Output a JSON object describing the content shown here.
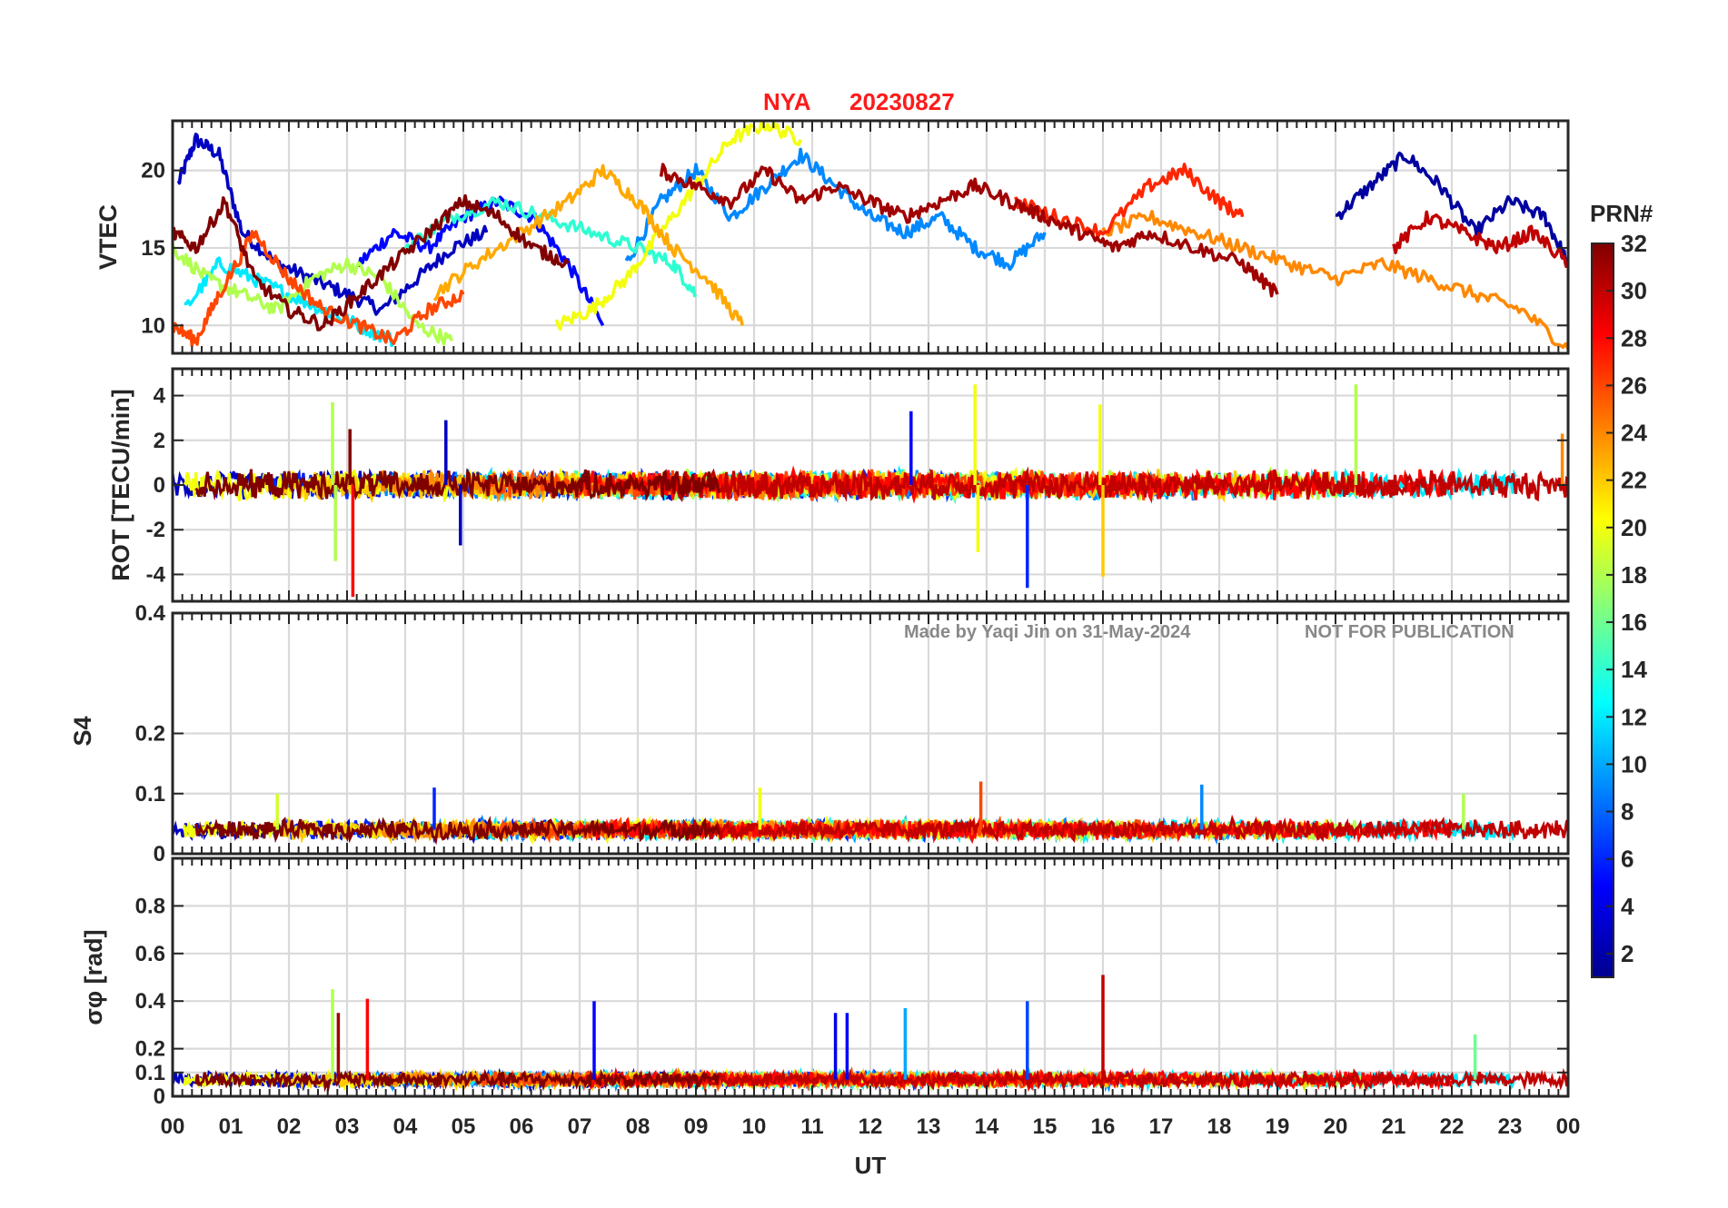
{
  "title": {
    "station": "NYA",
    "date": "20230827",
    "color": "#ff1a1a"
  },
  "watermark": {
    "credit": "Made by Yaqi Jin on 31-May-2024",
    "notice": "NOT FOR PUBLICATION"
  },
  "xlabel": "UT",
  "x_ticks": [
    "00",
    "01",
    "02",
    "03",
    "04",
    "05",
    "06",
    "07",
    "08",
    "09",
    "10",
    "11",
    "12",
    "13",
    "14",
    "15",
    "16",
    "17",
    "18",
    "19",
    "20",
    "21",
    "22",
    "23",
    "00"
  ],
  "colorbar": {
    "label": "PRN#",
    "range": [
      1,
      32
    ],
    "colormap": "jet",
    "ticks": [
      "2",
      "4",
      "6",
      "8",
      "10",
      "12",
      "14",
      "16",
      "18",
      "20",
      "22",
      "24",
      "26",
      "28",
      "30",
      "32"
    ]
  },
  "chart_data": [
    {
      "type": "line",
      "panel": "vtec",
      "ylabel": "VTEC",
      "xlim": [
        0,
        24
      ],
      "ylim": [
        8.2,
        23.2
      ],
      "yticks": [
        "10",
        "15",
        "20"
      ],
      "grid": true,
      "series": [
        {
          "prn": 3,
          "x": [
            0.1,
            0.4,
            0.8,
            1.2,
            1.8,
            2.4,
            3.0,
            3.6,
            4.2,
            4.8,
            5.4
          ],
          "y": [
            19.2,
            22,
            21,
            16,
            14,
            13,
            12,
            11,
            13,
            15,
            16
          ]
        },
        {
          "prn": 5,
          "x": [
            3.2,
            3.8,
            4.4,
            5.0,
            5.6,
            6.2,
            6.8,
            7.4
          ],
          "y": [
            14,
            16,
            15,
            17,
            18,
            17,
            14,
            10
          ]
        },
        {
          "prn": 9,
          "x": [
            7.8,
            8.4,
            9.0,
            9.6,
            10.2,
            10.8,
            11.4,
            12.0,
            12.6,
            13.2,
            13.8,
            14.4,
            15.0
          ],
          "y": [
            14,
            18,
            20,
            17,
            19,
            21,
            19,
            17,
            16,
            17,
            15,
            14,
            16
          ]
        },
        {
          "prn": 2,
          "x": [
            20.0,
            20.6,
            21.2,
            21.8,
            22.4,
            23.0,
            23.6,
            24.0
          ],
          "y": [
            17,
            19,
            21,
            19,
            16,
            18,
            17,
            14
          ]
        },
        {
          "prn": 12,
          "x": [
            0.2,
            0.8,
            1.4,
            2.0,
            2.6,
            3.2,
            3.8
          ],
          "y": [
            11,
            14,
            13,
            12,
            11,
            10,
            9
          ]
        },
        {
          "prn": 14,
          "x": [
            4.0,
            4.8,
            5.6,
            6.4,
            7.2,
            8.0,
            8.6,
            9.0
          ],
          "y": [
            15,
            17,
            18,
            17,
            16,
            15,
            14,
            12
          ]
        },
        {
          "prn": 18,
          "x": [
            0.0,
            0.6,
            1.2,
            1.8,
            2.4,
            3.0,
            3.6,
            4.2,
            4.8
          ],
          "y": [
            15,
            13,
            12,
            11,
            13,
            14,
            13,
            10,
            9
          ]
        },
        {
          "prn": 20,
          "x": [
            6.6,
            7.2,
            7.8,
            8.4,
            9.0,
            9.6,
            10.2,
            10.8
          ],
          "y": [
            10,
            11,
            13,
            16,
            19,
            22,
            23,
            22
          ]
        },
        {
          "prn": 23,
          "x": [
            4.5,
            5.2,
            6.0,
            6.8,
            7.4,
            8.0,
            8.6,
            9.2,
            9.8
          ],
          "y": [
            12,
            14,
            16,
            18,
            20,
            18,
            15,
            13,
            10
          ]
        },
        {
          "prn": 24,
          "x": [
            16.0,
            16.8,
            17.6,
            18.4,
            19.2,
            20.0,
            20.8,
            21.6,
            22.4,
            23.2,
            24.0
          ],
          "y": [
            16,
            17,
            16,
            15,
            14,
            13,
            14,
            13,
            12,
            11,
            8.5
          ]
        },
        {
          "prn": 26,
          "x": [
            0.0,
            0.4,
            0.8,
            1.4,
            2.0,
            2.6,
            3.2,
            3.8,
            4.4,
            5.0
          ],
          "y": [
            10,
            9,
            12,
            16,
            13,
            11,
            10,
            9,
            11,
            12
          ]
        },
        {
          "prn": 27,
          "x": [
            14.5,
            15.2,
            16.0,
            16.8,
            17.4,
            18.0,
            18.4
          ],
          "y": [
            18,
            17,
            16,
            19,
            20,
            18,
            17
          ]
        },
        {
          "prn": 31,
          "x": [
            8.4,
            9.0,
            9.6,
            10.2,
            10.8,
            11.4,
            12.0,
            12.6,
            13.2,
            13.8,
            14.4,
            15.0,
            15.6,
            16.2,
            16.8,
            17.6,
            18.4,
            19.0
          ],
          "y": [
            20,
            19,
            18,
            20,
            18,
            19,
            18,
            17,
            18,
            19,
            18,
            17,
            16,
            15,
            16,
            15,
            14,
            12
          ]
        },
        {
          "prn": 32,
          "x": [
            0.0,
            0.4,
            0.9,
            1.4,
            2.0,
            2.6,
            3.2,
            3.8,
            4.4,
            5.0,
            5.6,
            6.2,
            6.8
          ],
          "y": [
            16,
            15,
            18,
            13,
            11,
            10,
            12,
            14,
            16,
            18,
            17,
            15,
            14
          ]
        },
        {
          "prn": 30,
          "x": [
            21.0,
            21.6,
            22.2,
            22.8,
            23.4,
            24.0
          ],
          "y": [
            15,
            17,
            16,
            15,
            16,
            14
          ]
        }
      ]
    },
    {
      "type": "line",
      "panel": "rot",
      "ylabel": "ROT [TECU/min]",
      "xlim": [
        0,
        24
      ],
      "ylim": [
        -5.2,
        5.2
      ],
      "yticks": [
        "-4",
        "-2",
        "0",
        "2",
        "4"
      ],
      "grid": true,
      "noise_amplitude_tecu_per_min": 0.6,
      "spikes": [
        {
          "x": 2.75,
          "y": 3.7,
          "prn": 18
        },
        {
          "x": 2.8,
          "y": -3.4,
          "prn": 18
        },
        {
          "x": 3.05,
          "y": 2.5,
          "prn": 32
        },
        {
          "x": 3.1,
          "y": -5.0,
          "prn": 28
        },
        {
          "x": 4.7,
          "y": 2.9,
          "prn": 3
        },
        {
          "x": 4.95,
          "y": -2.7,
          "prn": 3
        },
        {
          "x": 12.7,
          "y": 3.3,
          "prn": 5
        },
        {
          "x": 13.8,
          "y": 4.5,
          "prn": 20
        },
        {
          "x": 13.85,
          "y": -3.0,
          "prn": 20
        },
        {
          "x": 14.7,
          "y": -4.6,
          "prn": 6
        },
        {
          "x": 15.95,
          "y": 3.6,
          "prn": 20
        },
        {
          "x": 16.0,
          "y": -4.1,
          "prn": 22
        },
        {
          "x": 20.35,
          "y": 4.5,
          "prn": 18
        },
        {
          "x": 23.9,
          "y": 2.3,
          "prn": 24
        }
      ]
    },
    {
      "type": "line",
      "panel": "s4",
      "ylabel": "S4",
      "xlim": [
        0,
        24
      ],
      "ylim": [
        0,
        0.4
      ],
      "yticks": [
        "0",
        "0.1",
        "0.2",
        "0.4"
      ],
      "grid": true,
      "baseline": 0.04,
      "noise_amplitude": 0.015,
      "spikes": [
        {
          "x": 1.8,
          "y": 0.1,
          "prn": 19
        },
        {
          "x": 4.5,
          "y": 0.11,
          "prn": 6
        },
        {
          "x": 10.1,
          "y": 0.11,
          "prn": 20
        },
        {
          "x": 13.9,
          "y": 0.12,
          "prn": 26
        },
        {
          "x": 17.7,
          "y": 0.115,
          "prn": 9
        },
        {
          "x": 22.2,
          "y": 0.1,
          "prn": 18
        }
      ]
    },
    {
      "type": "line",
      "panel": "sigma_phi",
      "ylabel": "σφ [rad]",
      "xlim": [
        0,
        24
      ],
      "ylim": [
        0,
        1.0
      ],
      "yticks": [
        "0",
        "0.1",
        "0.2",
        "0.4",
        "0.6",
        "0.8"
      ],
      "grid": true,
      "baseline": 0.07,
      "noise_amplitude": 0.03,
      "spikes": [
        {
          "x": 2.75,
          "y": 0.45,
          "prn": 18
        },
        {
          "x": 2.85,
          "y": 0.35,
          "prn": 31
        },
        {
          "x": 3.35,
          "y": 0.41,
          "prn": 28
        },
        {
          "x": 7.25,
          "y": 0.4,
          "prn": 5
        },
        {
          "x": 11.4,
          "y": 0.35,
          "prn": 4
        },
        {
          "x": 11.6,
          "y": 0.35,
          "prn": 5
        },
        {
          "x": 12.6,
          "y": 0.37,
          "prn": 10
        },
        {
          "x": 14.7,
          "y": 0.4,
          "prn": 7
        },
        {
          "x": 16.0,
          "y": 0.51,
          "prn": 30
        },
        {
          "x": 22.4,
          "y": 0.26,
          "prn": 16
        }
      ]
    }
  ]
}
